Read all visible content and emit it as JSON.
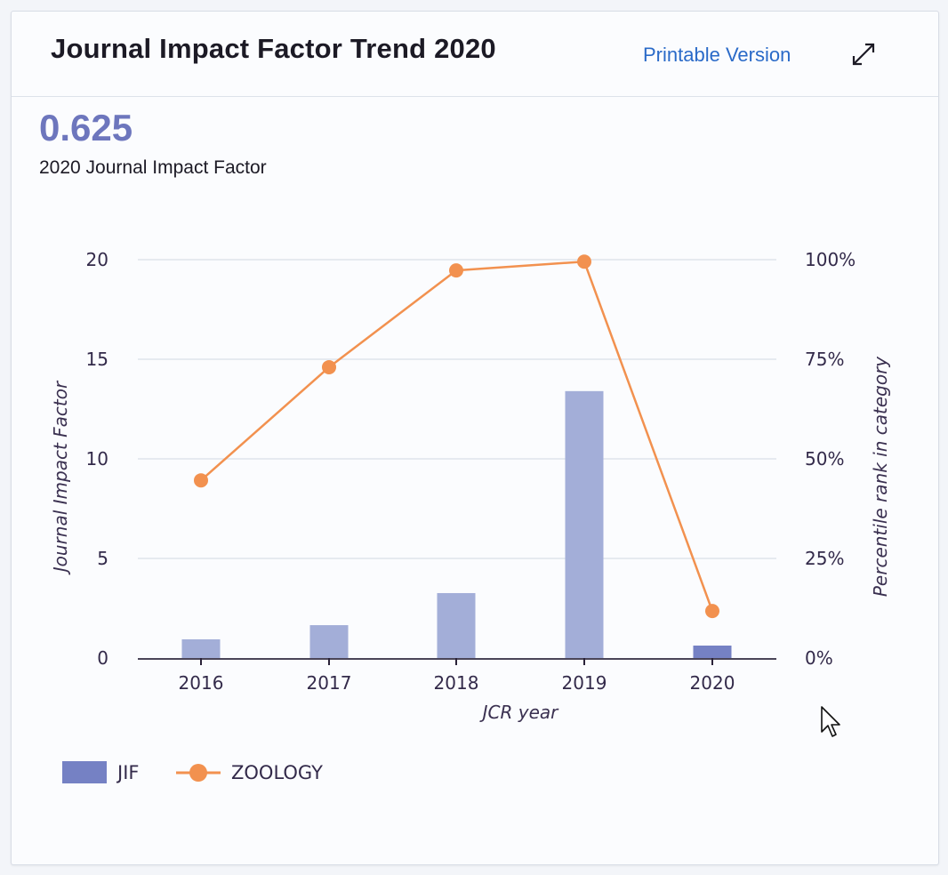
{
  "header": {
    "title": "Journal Impact Factor Trend 2020",
    "printable_label": "Printable Version",
    "expand_icon": "expand-diagonal-arrows-icon"
  },
  "summary": {
    "value": "0.625",
    "caption": "2020 Journal Impact Factor"
  },
  "colors": {
    "bar": "#a3aed8",
    "bar_current": "#7581c4",
    "line": "#f2914f",
    "accent_value": "#6d76bd",
    "link": "#2a6ac8",
    "grid": "#dfe3ec",
    "axis": "#4a4558"
  },
  "chart_data": {
    "type": "bar+line",
    "title": "Journal Impact Factor Trend 2020",
    "categories": [
      "2016",
      "2017",
      "2018",
      "2019",
      "2020"
    ],
    "xlabel": "JCR year",
    "ylabel": "Journal Impact Factor",
    "y2label": "Percentile rank in category",
    "ylim": [
      0,
      20
    ],
    "y_ticks": [
      "0",
      "5",
      "10",
      "15",
      "20"
    ],
    "y_tick_values": [
      0,
      5,
      10,
      15,
      20
    ],
    "y2lim": [
      0,
      100
    ],
    "y2_ticks": [
      "0%",
      "25%",
      "50%",
      "75%",
      "100%"
    ],
    "y2_tick_values": [
      0,
      25,
      50,
      75,
      100
    ],
    "grid": true,
    "legend_position": "bottom-left",
    "series": [
      {
        "name": "JIF",
        "type": "bar",
        "axis": "left",
        "values": [
          0.94,
          1.65,
          3.26,
          13.4,
          0.625
        ],
        "highlight_index": 4
      },
      {
        "name": "ZOOLOGY",
        "type": "line",
        "axis": "right",
        "values": [
          44.6,
          73.0,
          97.3,
          99.5,
          11.8
        ]
      }
    ],
    "legend": [
      {
        "label": "JIF",
        "marker": "square"
      },
      {
        "label": "ZOOLOGY",
        "marker": "line-dot"
      }
    ]
  }
}
